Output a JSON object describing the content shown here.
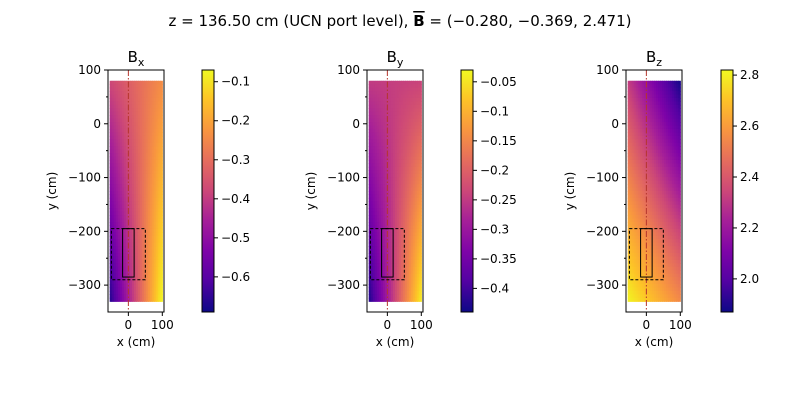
{
  "figure": {
    "title_prefix": "z = 136.50 cm (UCN port level), ",
    "title_symbol": "B",
    "title_suffix": " = (−0.280, −0.369, 2.471)"
  },
  "chart_data": [
    {
      "type": "heatmap",
      "title_base": "B",
      "title_sub": "x",
      "xlabel": "x (cm)",
      "ylabel": "y (cm)",
      "xlim": [
        -60,
        105
      ],
      "ylim": [
        -350,
        100
      ],
      "xticks": [
        0,
        100
      ],
      "yticks": [
        100,
        0,
        -100,
        -200,
        -300
      ],
      "field_extent": {
        "x": [
          -55,
          100
        ],
        "y": [
          -330,
          80
        ]
      },
      "corner_values": {
        "top_left": -0.38,
        "top_right": -0.24,
        "bottom_left": -0.67,
        "bottom_right": -0.07
      },
      "colorbar": {
        "min": -0.69,
        "max": -0.07,
        "ticks": [
          -0.1,
          -0.2,
          -0.3,
          -0.4,
          -0.5,
          -0.6
        ],
        "colormap": "plasma"
      },
      "annotations": {
        "centerline_x": 0,
        "dashed_box": {
          "x": [
            -50,
            50
          ],
          "y": [
            -290,
            -195
          ]
        },
        "solid_box": {
          "x": [
            -17,
            17
          ],
          "y": [
            -285,
            -195
          ]
        }
      }
    },
    {
      "type": "heatmap",
      "title_base": "B",
      "title_sub": "y",
      "xlabel": "x (cm)",
      "ylabel": "y (cm)",
      "xlim": [
        -60,
        105
      ],
      "ylim": [
        -350,
        100
      ],
      "xticks": [
        0,
        100
      ],
      "yticks": [
        100,
        0,
        -100,
        -200,
        -300
      ],
      "field_extent": {
        "x": [
          -55,
          100
        ],
        "y": [
          -330,
          80
        ]
      },
      "corner_values": {
        "top_left": -0.25,
        "top_right": -0.24,
        "bottom_left": -0.43,
        "bottom_right": -0.04
      },
      "colorbar": {
        "min": -0.44,
        "max": -0.03,
        "ticks": [
          -0.05,
          -0.1,
          -0.15,
          -0.2,
          -0.25,
          -0.3,
          -0.35,
          -0.4
        ],
        "colormap": "plasma"
      },
      "annotations": {
        "centerline_x": 0,
        "dashed_box": {
          "x": [
            -50,
            50
          ],
          "y": [
            -290,
            -195
          ]
        },
        "solid_box": {
          "x": [
            -17,
            17
          ],
          "y": [
            -285,
            -195
          ]
        }
      }
    },
    {
      "type": "heatmap",
      "title_base": "B",
      "title_sub": "z",
      "xlabel": "x (cm)",
      "ylabel": "y (cm)",
      "xlim": [
        -60,
        105
      ],
      "ylim": [
        -350,
        100
      ],
      "xticks": [
        0,
        100
      ],
      "yticks": [
        100,
        0,
        -100,
        -200,
        -300
      ],
      "field_extent": {
        "x": [
          -55,
          100
        ],
        "y": [
          -330,
          80
        ]
      },
      "corner_values": {
        "top_left": 2.32,
        "top_right": 1.88,
        "bottom_left": 2.81,
        "bottom_right": 2.55
      },
      "colorbar": {
        "min": 1.87,
        "max": 2.82,
        "ticks": [
          2.0,
          2.2,
          2.4,
          2.6,
          2.8
        ],
        "colormap": "plasma"
      },
      "annotations": {
        "centerline_x": 0,
        "dashed_box": {
          "x": [
            -50,
            50
          ],
          "y": [
            -290,
            -195
          ]
        },
        "solid_box": {
          "x": [
            -17,
            17
          ],
          "y": [
            -285,
            -195
          ]
        }
      }
    }
  ]
}
